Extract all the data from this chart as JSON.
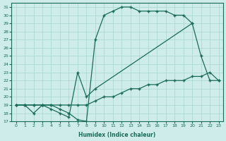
{
  "xlabel": "Humidex (Indice chaleur)",
  "ylabel": "",
  "xlim": [
    -0.5,
    23.5
  ],
  "ylim": [
    17,
    31.5
  ],
  "yticks": [
    17,
    18,
    19,
    20,
    21,
    22,
    23,
    24,
    25,
    26,
    27,
    28,
    29,
    30,
    31
  ],
  "xticks": [
    0,
    1,
    2,
    3,
    4,
    5,
    6,
    7,
    8,
    9,
    10,
    11,
    12,
    13,
    14,
    15,
    16,
    17,
    18,
    19,
    20,
    21,
    22,
    23
  ],
  "line_color": "#1a6b5a",
  "bg_color": "#ceecea",
  "grid_color": "#a8d5d0",
  "line1_x": [
    0,
    1,
    2,
    3,
    4,
    5,
    6,
    7,
    8,
    9,
    10,
    11,
    12,
    13,
    14,
    15,
    16,
    17,
    18,
    19,
    20
  ],
  "line1_y": [
    19,
    19,
    19,
    19,
    19,
    18.5,
    18,
    17.2,
    17,
    27,
    30,
    30.5,
    31,
    31,
    30.5,
    30.5,
    30.5,
    30.5,
    30,
    30,
    29
  ],
  "line2_x": [
    0,
    1,
    2,
    3,
    4,
    5,
    6,
    7,
    8,
    9,
    20,
    21,
    22,
    23
  ],
  "line2_y": [
    19,
    19,
    18,
    19,
    18.5,
    18,
    17.5,
    23,
    20,
    21,
    29,
    25,
    22,
    22
  ],
  "line3_x": [
    0,
    1,
    2,
    3,
    4,
    5,
    6,
    7,
    8,
    9,
    10,
    11,
    12,
    13,
    14,
    15,
    16,
    17,
    18,
    19,
    20,
    21,
    22,
    23
  ],
  "line3_y": [
    19,
    19,
    19,
    19,
    19,
    19,
    19,
    19,
    19,
    19.5,
    20,
    20,
    20.5,
    21,
    21,
    21.5,
    21.5,
    22,
    22,
    22,
    22.5,
    22.5,
    23,
    22
  ]
}
